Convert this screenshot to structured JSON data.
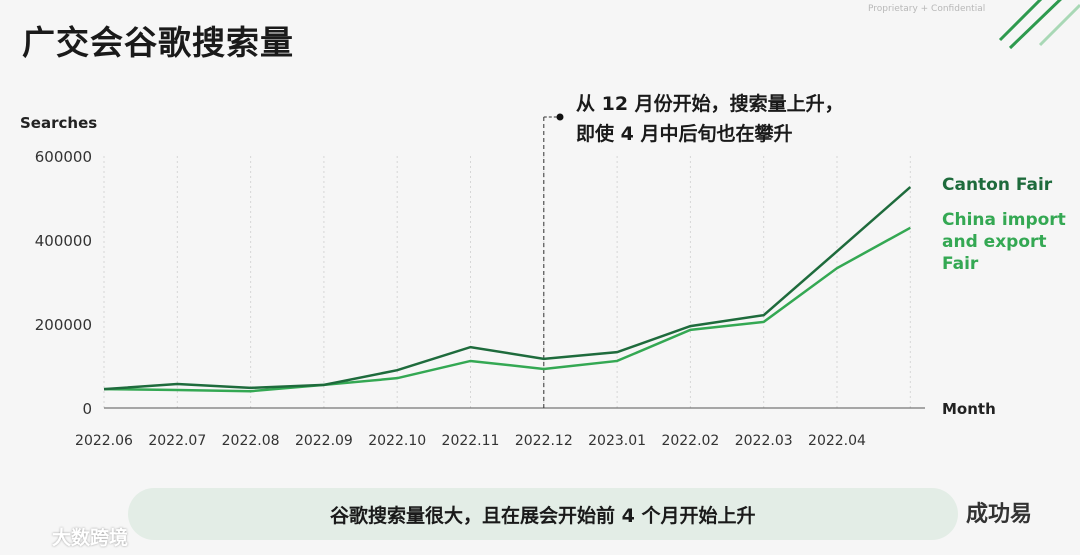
{
  "chart_data": {
    "type": "line",
    "title": "广交会谷歌搜索量",
    "y_label": "Searches",
    "x_label": "Month",
    "categories": [
      "2022.06",
      "2022.07",
      "2022.08",
      "2022.09",
      "2022.10",
      "2022.11",
      "2022.12",
      "2023.01",
      "2022.02",
      "2022.03",
      "2022.04",
      null
    ],
    "series": [
      {
        "name": "Canton Fair",
        "color": "#1e6b3c",
        "values": [
          45000,
          57000,
          48000,
          55000,
          90000,
          145000,
          117000,
          133000,
          195000,
          221000,
          373000,
          526000
        ]
      },
      {
        "name": "China import and export Fair",
        "color": "#34a853",
        "values": [
          45000,
          43000,
          40000,
          55000,
          71000,
          112000,
          93000,
          112000,
          186000,
          205000,
          333000,
          429000
        ]
      }
    ],
    "ylim": [
      0,
      600000
    ],
    "yticks": [
      0,
      200000,
      400000,
      600000
    ],
    "grid": true,
    "annotation": {
      "x": "2022.12",
      "lines": [
        "从 12 月份开始，搜索量上升，",
        "即使 4 月中后旬也在攀升"
      ]
    },
    "banner": "谷歌搜索量很大，且在展会开始前 4 个月开始上升",
    "confidential": "Proprietary + Confidential",
    "watermarks": [
      "成功易",
      "大数跨境"
    ]
  }
}
